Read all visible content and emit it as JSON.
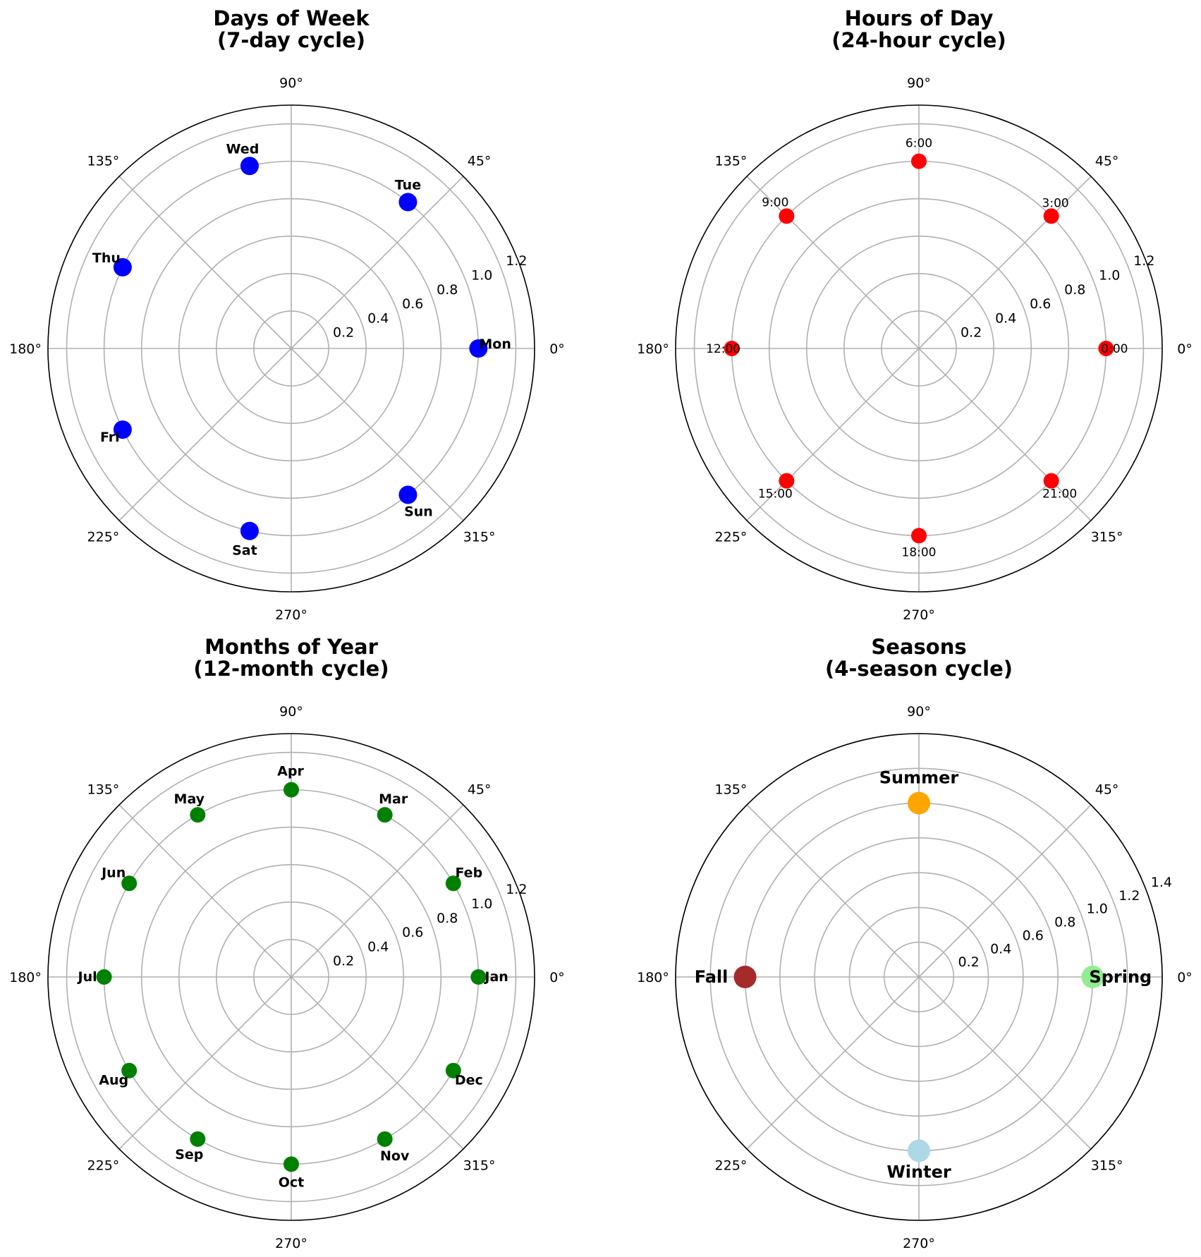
{
  "chart_data": [
    {
      "type": "scatter",
      "projection": "polar",
      "title_line1": "Days of Week",
      "title_line2": "(7-day cycle)",
      "theta_ticks": [
        "0°",
        "45°",
        "90°",
        "135°",
        "180°",
        "225°",
        "270°",
        "315°"
      ],
      "r_ticks": [
        "0.2",
        "0.4",
        "0.6",
        "0.8",
        "1.0",
        "1.2"
      ],
      "r_tick_values": [
        0.2,
        0.4,
        0.6,
        0.8,
        1.0,
        1.2
      ],
      "rlim": [
        0,
        1.3
      ],
      "grid": true,
      "marker_color": "#0000ff",
      "label_weight": "bold",
      "points": [
        {
          "label": "Mon",
          "theta": 0.0,
          "r": 1.0
        },
        {
          "label": "Tue",
          "theta": 51.43,
          "r": 1.0
        },
        {
          "label": "Wed",
          "theta": 102.86,
          "r": 1.0
        },
        {
          "label": "Thu",
          "theta": 154.29,
          "r": 1.0
        },
        {
          "label": "Fri",
          "theta": 205.71,
          "r": 1.0
        },
        {
          "label": "Sat",
          "theta": 257.14,
          "r": 1.0
        },
        {
          "label": "Sun",
          "theta": 308.57,
          "r": 1.0
        }
      ]
    },
    {
      "type": "scatter",
      "projection": "polar",
      "title_line1": "Hours of Day",
      "title_line2": "(24-hour cycle)",
      "theta_ticks": [
        "0°",
        "45°",
        "90°",
        "135°",
        "180°",
        "225°",
        "270°",
        "315°"
      ],
      "r_ticks": [
        "0.2",
        "0.4",
        "0.6",
        "0.8",
        "1.0",
        "1.2"
      ],
      "r_tick_values": [
        0.2,
        0.4,
        0.6,
        0.8,
        1.0,
        1.2
      ],
      "rlim": [
        0,
        1.3
      ],
      "grid": true,
      "marker_color": "#ff0000",
      "label_weight": "normal",
      "points": [
        {
          "label": "0:00",
          "theta": 0,
          "r": 1.0
        },
        {
          "label": "3:00",
          "theta": 45,
          "r": 1.0
        },
        {
          "label": "6:00",
          "theta": 90,
          "r": 1.0
        },
        {
          "label": "9:00",
          "theta": 135,
          "r": 1.0
        },
        {
          "label": "12:00",
          "theta": 180,
          "r": 1.0
        },
        {
          "label": "15:00",
          "theta": 225,
          "r": 1.0
        },
        {
          "label": "18:00",
          "theta": 270,
          "r": 1.0
        },
        {
          "label": "21:00",
          "theta": 315,
          "r": 1.0
        }
      ]
    },
    {
      "type": "scatter",
      "projection": "polar",
      "title_line1": "Months of Year",
      "title_line2": "(12-month cycle)",
      "theta_ticks": [
        "0°",
        "45°",
        "90°",
        "135°",
        "180°",
        "225°",
        "270°",
        "315°"
      ],
      "r_ticks": [
        "0.2",
        "0.4",
        "0.6",
        "0.8",
        "1.0",
        "1.2"
      ],
      "r_tick_values": [
        0.2,
        0.4,
        0.6,
        0.8,
        1.0,
        1.2
      ],
      "rlim": [
        0,
        1.3
      ],
      "grid": true,
      "marker_color": "#008000",
      "label_weight": "bold",
      "points": [
        {
          "label": "Jan",
          "theta": 0,
          "r": 1.0
        },
        {
          "label": "Feb",
          "theta": 30,
          "r": 1.0
        },
        {
          "label": "Mar",
          "theta": 60,
          "r": 1.0
        },
        {
          "label": "Apr",
          "theta": 90,
          "r": 1.0
        },
        {
          "label": "May",
          "theta": 120,
          "r": 1.0
        },
        {
          "label": "Jun",
          "theta": 150,
          "r": 1.0
        },
        {
          "label": "Jul",
          "theta": 180,
          "r": 1.0
        },
        {
          "label": "Aug",
          "theta": 210,
          "r": 1.0
        },
        {
          "label": "Sep",
          "theta": 240,
          "r": 1.0
        },
        {
          "label": "Oct",
          "theta": 270,
          "r": 1.0
        },
        {
          "label": "Nov",
          "theta": 300,
          "r": 1.0
        },
        {
          "label": "Dec",
          "theta": 330,
          "r": 1.0
        }
      ]
    },
    {
      "type": "scatter",
      "projection": "polar",
      "title_line1": "Seasons",
      "title_line2": "(4-season cycle)",
      "theta_ticks": [
        "0°",
        "45°",
        "90°",
        "135°",
        "180°",
        "225°",
        "270°",
        "315°"
      ],
      "r_ticks": [
        "0.2",
        "0.4",
        "0.6",
        "0.8",
        "1.0",
        "1.2",
        "1.4"
      ],
      "r_tick_values": [
        0.2,
        0.4,
        0.6,
        0.8,
        1.0,
        1.2,
        1.4
      ],
      "rlim": [
        0,
        1.4
      ],
      "grid": true,
      "label_weight": "bold",
      "points": [
        {
          "label": "Spring",
          "theta": 0,
          "r": 1.0,
          "color": "#90ee90"
        },
        {
          "label": "Summer",
          "theta": 90,
          "r": 1.0,
          "color": "#ffa500"
        },
        {
          "label": "Fall",
          "theta": 180,
          "r": 1.0,
          "color": "#a52a2a"
        },
        {
          "label": "Winter",
          "theta": 270,
          "r": 1.0,
          "color": "#add8e6"
        }
      ]
    }
  ]
}
